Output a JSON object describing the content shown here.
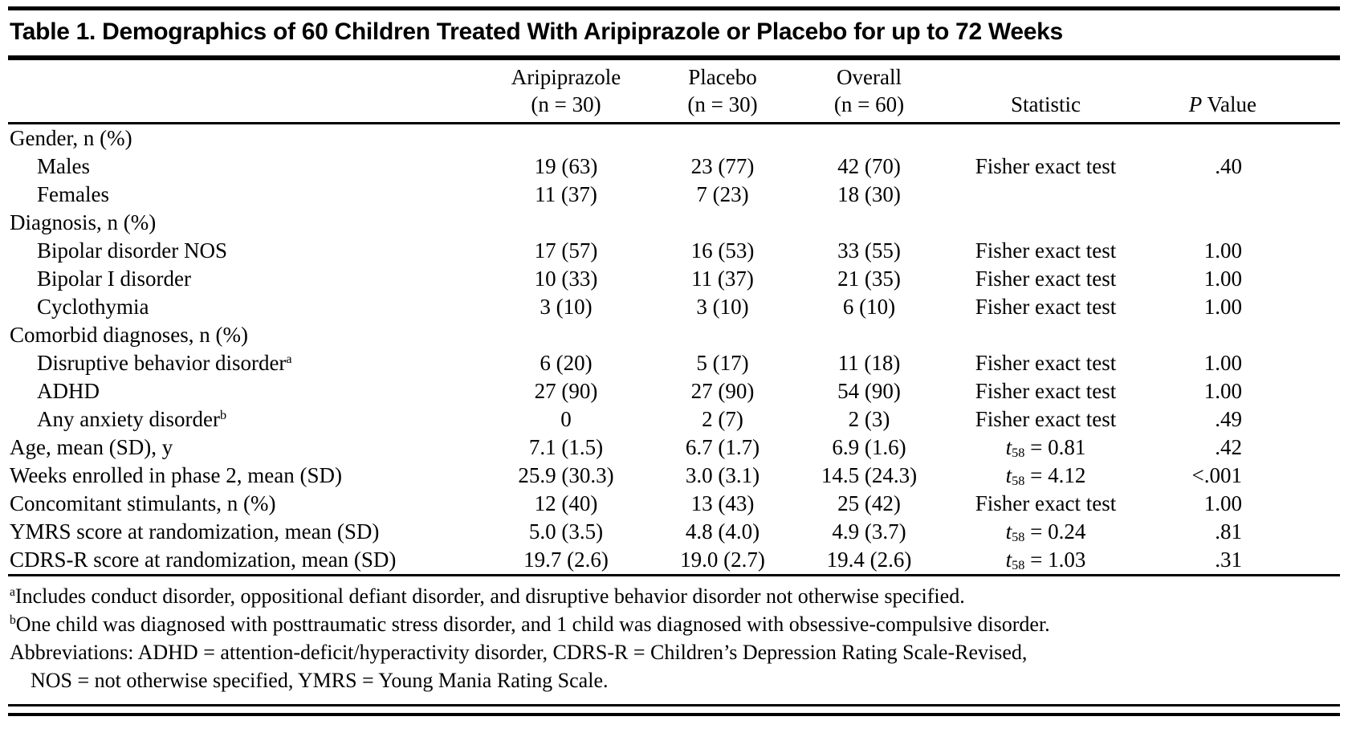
{
  "title": "Table 1. Demographics of 60 Children Treated With Aripiprazole or Placebo for up to 72 Weeks",
  "columns": {
    "aripiprazole": {
      "line1": "Aripiprazole",
      "line2": "(n = 30)"
    },
    "placebo": {
      "line1": "Placebo",
      "line2": "(n = 30)"
    },
    "overall": {
      "line1": "Overall",
      "line2": "(n = 60)"
    },
    "statistic": "Statistic",
    "p_value": {
      "italic": "P",
      "rest": " Value"
    }
  },
  "rows": [
    {
      "label": "Gender, n (%)",
      "section": true
    },
    {
      "label": "Males",
      "indent": true,
      "aripiprazole": "19 (63)",
      "placebo": "23 (77)",
      "overall": "42 (70)",
      "statistic": "Fisher exact test",
      "p": ".40"
    },
    {
      "label": "Females",
      "indent": true,
      "aripiprazole": "11 (37)",
      "placebo": "7 (23)",
      "overall": "18 (30)"
    },
    {
      "label": "Diagnosis, n (%)",
      "section": true
    },
    {
      "label": "Bipolar disorder NOS",
      "indent": true,
      "aripiprazole": "17 (57)",
      "placebo": "16 (53)",
      "overall": "33 (55)",
      "statistic": "Fisher exact test",
      "p": "1.00"
    },
    {
      "label": "Bipolar I disorder",
      "indent": true,
      "aripiprazole": "10 (33)",
      "placebo": "11 (37)",
      "overall": "21 (35)",
      "statistic": "Fisher exact test",
      "p": "1.00"
    },
    {
      "label": "Cyclothymia",
      "indent": true,
      "aripiprazole": "3 (10)",
      "placebo": "3 (10)",
      "overall": "6 (10)",
      "statistic": "Fisher exact test",
      "p": "1.00"
    },
    {
      "label": "Comorbid diagnoses, n (%)",
      "section": true
    },
    {
      "label": "Disruptive behavior disorder",
      "label_sup": "a",
      "indent": true,
      "aripiprazole": "6 (20)",
      "placebo": "5 (17)",
      "overall": "11 (18)",
      "statistic": "Fisher exact test",
      "p": "1.00"
    },
    {
      "label": "ADHD",
      "indent": true,
      "aripiprazole": "27 (90)",
      "placebo": "27 (90)",
      "overall": "54 (90)",
      "statistic": "Fisher exact test",
      "p": "1.00"
    },
    {
      "label": "Any anxiety disorder",
      "label_sup": "b",
      "indent": true,
      "aripiprazole": "0",
      "placebo": "2 (7)",
      "overall": "2 (3)",
      "statistic": "Fisher exact test",
      "p": ".49"
    },
    {
      "label": "Age, mean (SD), y",
      "aripiprazole": "7.1 (1.5)",
      "placebo": "6.7 (1.7)",
      "overall": "6.9 (1.6)",
      "stat_t": {
        "t": "t",
        "sub": "58",
        "rest": " = 0.81"
      },
      "p": ".42"
    },
    {
      "label": "Weeks enrolled in phase 2, mean (SD)",
      "aripiprazole": "25.9 (30.3)",
      "placebo": "3.0 (3.1)",
      "overall": "14.5 (24.3)",
      "stat_t": {
        "t": "t",
        "sub": "58",
        "rest": " = 4.12"
      },
      "p": "<.001"
    },
    {
      "label": "Concomitant stimulants, n (%)",
      "aripiprazole": "12 (40)",
      "placebo": "13 (43)",
      "overall": "25 (42)",
      "statistic": "Fisher exact test",
      "p": "1.00"
    },
    {
      "label": "YMRS score at randomization, mean (SD)",
      "aripiprazole": "5.0 (3.5)",
      "placebo": "4.8 (4.0)",
      "overall": "4.9 (3.7)",
      "stat_t": {
        "t": "t",
        "sub": "58",
        "rest": " = 0.24"
      },
      "p": ".81"
    },
    {
      "label": "CDRS-R score at randomization, mean (SD)",
      "aripiprazole": "19.7 (2.6)",
      "placebo": "19.0 (2.7)",
      "overall": "19.4 (2.6)",
      "stat_t": {
        "t": "t",
        "sub": "58",
        "rest": " = 1.03"
      },
      "p": ".31"
    }
  ],
  "footnotes": [
    {
      "sup": "a",
      "lines": [
        "Includes conduct disorder, oppositional defiant disorder, and disruptive behavior disorder not otherwise specified."
      ]
    },
    {
      "sup": "b",
      "lines": [
        "One child was diagnosed with posttraumatic stress disorder, and 1 child was diagnosed with obsessive-compulsive disorder."
      ]
    },
    {
      "sup": "",
      "lines": [
        "Abbreviations: ADHD = attention-deficit/hyperactivity disorder, CDRS-R = Children’s Depression Rating Scale-Revised,",
        "NOS = not otherwise specified, YMRS = Young Mania Rating Scale."
      ]
    }
  ]
}
